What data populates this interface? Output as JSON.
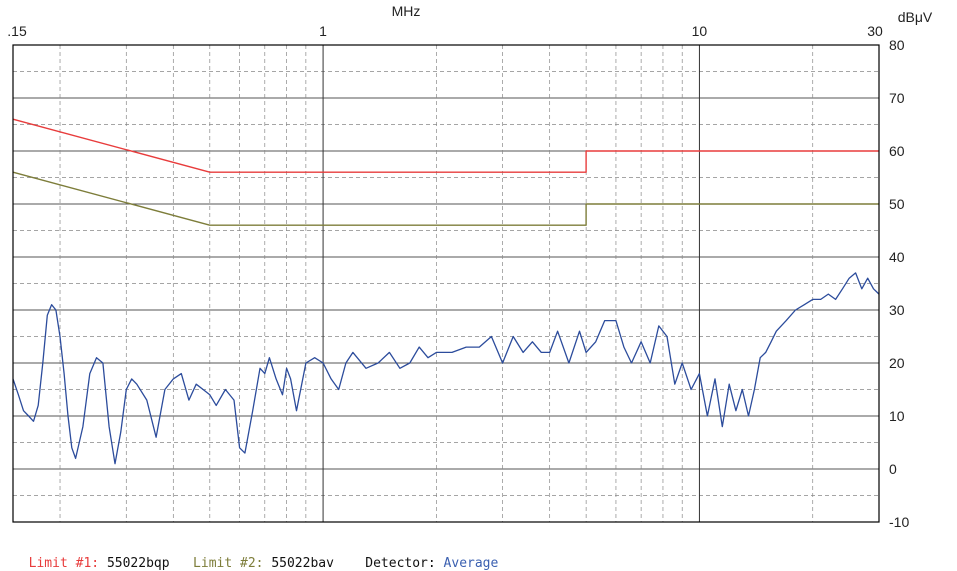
{
  "chart_data": {
    "type": "line",
    "title": "",
    "xlabel": "MHz",
    "ylabel": "dBμV",
    "x_scale": "log",
    "xlim": [
      0.15,
      30
    ],
    "ylim": [
      -10,
      80
    ],
    "x_ticks": [
      {
        "value": 0.15,
        "label": ".15"
      },
      {
        "value": 1,
        "label": "1"
      },
      {
        "value": 10,
        "label": "10"
      },
      {
        "value": 30,
        "label": "30"
      }
    ],
    "y_ticks": [
      80,
      70,
      60,
      50,
      40,
      30,
      20,
      10,
      0,
      -10
    ],
    "grid": true,
    "series": [
      {
        "name": "55022bqp",
        "color": "#e83c3c",
        "x": [
          0.15,
          0.5,
          0.5,
          5,
          5,
          30
        ],
        "y": [
          66,
          56,
          56,
          56,
          60,
          60
        ]
      },
      {
        "name": "55022bav",
        "color": "#7d7d3a",
        "x": [
          0.15,
          0.5,
          0.5,
          5,
          5,
          30
        ],
        "y": [
          56,
          46,
          46,
          46,
          50,
          50
        ]
      },
      {
        "name": "Average",
        "color": "#2c4c9c",
        "x": [
          0.15,
          0.155,
          0.16,
          0.165,
          0.17,
          0.175,
          0.18,
          0.185,
          0.19,
          0.195,
          0.2,
          0.205,
          0.21,
          0.215,
          0.22,
          0.23,
          0.24,
          0.25,
          0.26,
          0.27,
          0.28,
          0.29,
          0.3,
          0.31,
          0.32,
          0.34,
          0.36,
          0.38,
          0.4,
          0.42,
          0.44,
          0.46,
          0.48,
          0.5,
          0.52,
          0.55,
          0.58,
          0.6,
          0.62,
          0.65,
          0.68,
          0.7,
          0.72,
          0.75,
          0.78,
          0.8,
          0.82,
          0.85,
          0.9,
          0.95,
          1.0,
          1.05,
          1.1,
          1.15,
          1.2,
          1.3,
          1.4,
          1.5,
          1.6,
          1.7,
          1.8,
          1.9,
          2.0,
          2.2,
          2.4,
          2.6,
          2.8,
          3.0,
          3.2,
          3.4,
          3.6,
          3.8,
          4.0,
          4.2,
          4.5,
          4.8,
          5.0,
          5.3,
          5.6,
          6.0,
          6.3,
          6.6,
          7.0,
          7.4,
          7.8,
          8.2,
          8.6,
          9.0,
          9.5,
          10.0,
          10.5,
          11,
          11.5,
          12,
          12.5,
          13,
          13.5,
          14,
          14.5,
          15,
          15.5,
          16,
          17,
          18,
          19,
          20,
          21,
          22,
          23,
          24,
          25,
          26,
          27,
          28,
          29,
          30
        ],
        "y": [
          17,
          14,
          11,
          10,
          9,
          12,
          20,
          29,
          31,
          30,
          25,
          18,
          10,
          4,
          2,
          8,
          18,
          21,
          20,
          8,
          1,
          7,
          15,
          17,
          16,
          13,
          6,
          15,
          17,
          18,
          13,
          16,
          15,
          14,
          12,
          15,
          13,
          4,
          3,
          11,
          19,
          18,
          21,
          17,
          14,
          19,
          17,
          11,
          20,
          21,
          20,
          17,
          15,
          20,
          22,
          19,
          20,
          22,
          19,
          20,
          23,
          21,
          22,
          22,
          23,
          23,
          25,
          20,
          25,
          22,
          24,
          22,
          22,
          26,
          20,
          26,
          22,
          24,
          28,
          28,
          23,
          20,
          24,
          20,
          27,
          25,
          16,
          20,
          15,
          18,
          10,
          17,
          8,
          16,
          11,
          15,
          10,
          15,
          21,
          22,
          24,
          26,
          28,
          30,
          31,
          32,
          32,
          33,
          32,
          34,
          36,
          37,
          34,
          36,
          34,
          33
        ]
      }
    ]
  },
  "footer": {
    "limit1_label": "Limit #1:",
    "limit1_value": "55022bqp",
    "limit2_label": "Limit #2:",
    "limit2_value": "55022bav",
    "detector_label": "Detector:",
    "detector_value": "Average"
  }
}
